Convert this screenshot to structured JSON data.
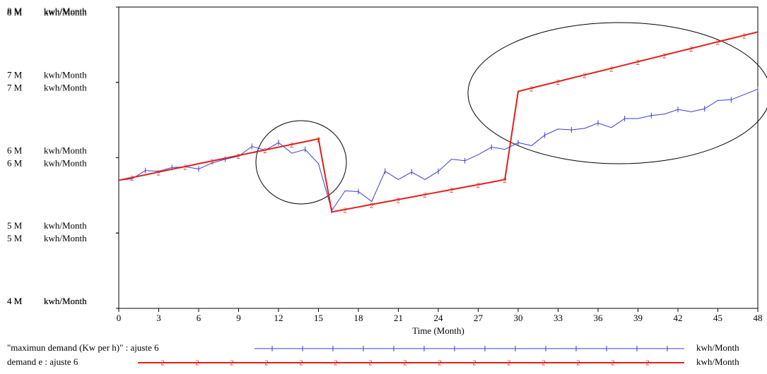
{
  "chart_data": {
    "type": "line",
    "x_label": "Time (Month)",
    "y_unit": "kwh/Month",
    "x": [
      0,
      1,
      2,
      3,
      4,
      5,
      6,
      7,
      8,
      9,
      10,
      11,
      12,
      13,
      14,
      15,
      16,
      17,
      18,
      19,
      20,
      21,
      22,
      23,
      24,
      25,
      26,
      27,
      28,
      29,
      30,
      31,
      32,
      33,
      34,
      35,
      36,
      37,
      38,
      39,
      40,
      41,
      42,
      43,
      44,
      45,
      46,
      47,
      48
    ],
    "xlim": [
      0,
      48
    ],
    "xticks": [
      0,
      3,
      6,
      9,
      12,
      15,
      18,
      21,
      24,
      27,
      30,
      33,
      36,
      39,
      42,
      45,
      48
    ],
    "ylim": [
      4000000,
      8000000
    ],
    "yticks": [
      {
        "value": 8000000,
        "label": "8 M"
      },
      {
        "value": 7000000,
        "label": "7 M"
      },
      {
        "value": 6000000,
        "label": "6 M"
      },
      {
        "value": 5000000,
        "label": "5 M"
      },
      {
        "value": 4000000,
        "label": "4 M"
      }
    ],
    "y2lim": [
      4000000,
      8000000
    ],
    "y2ticks": [
      {
        "value": 8000000,
        "label": "8 M"
      },
      {
        "value": 7000000,
        "label": "7 M"
      },
      {
        "value": 6000000,
        "label": "6 M"
      },
      {
        "value": 5000000,
        "label": "5 M"
      },
      {
        "value": 4000000,
        "label": "4 M"
      }
    ],
    "grid": false,
    "series": [
      {
        "name": "\"maximun demand (Kw per h)\" : ajuste 6",
        "color": "#3b3bd6",
        "axis": "y",
        "values": [
          5700000,
          5720000,
          5830000,
          5820000,
          5870000,
          5880000,
          5850000,
          5930000,
          5980000,
          6020000,
          6150000,
          6100000,
          6200000,
          6060000,
          6110000,
          5920000,
          5300000,
          5560000,
          5550000,
          5420000,
          5820000,
          5710000,
          5810000,
          5710000,
          5820000,
          5980000,
          5960000,
          6040000,
          6140000,
          6110000,
          6200000,
          6160000,
          6300000,
          6380000,
          6370000,
          6390000,
          6460000,
          6400000,
          6520000,
          6520000,
          6560000,
          6580000,
          6640000,
          6610000,
          6650000,
          6760000,
          6770000,
          6840000,
          6910000
        ]
      },
      {
        "name": "demand e : ajuste 6",
        "color": "#e0201c",
        "axis": "y2",
        "marker": "2",
        "values": [
          5700000,
          5737000,
          5773000,
          5810000,
          5847000,
          5883000,
          5920000,
          5957000,
          5993000,
          6030000,
          6067000,
          6103000,
          6140000,
          6177000,
          6213000,
          6250000,
          5280000,
          5313000,
          5346000,
          5379000,
          5412000,
          5445000,
          5478000,
          5511000,
          5544000,
          5577000,
          5610000,
          5643000,
          5676000,
          5710000,
          6880000,
          6924000,
          6968000,
          7012000,
          7056000,
          7100000,
          7143000,
          7187000,
          7231000,
          7275000,
          7319000,
          7363000,
          7407000,
          7451000,
          7495000,
          7539000,
          7582000,
          7626000,
          7670000
        ]
      }
    ]
  }
}
